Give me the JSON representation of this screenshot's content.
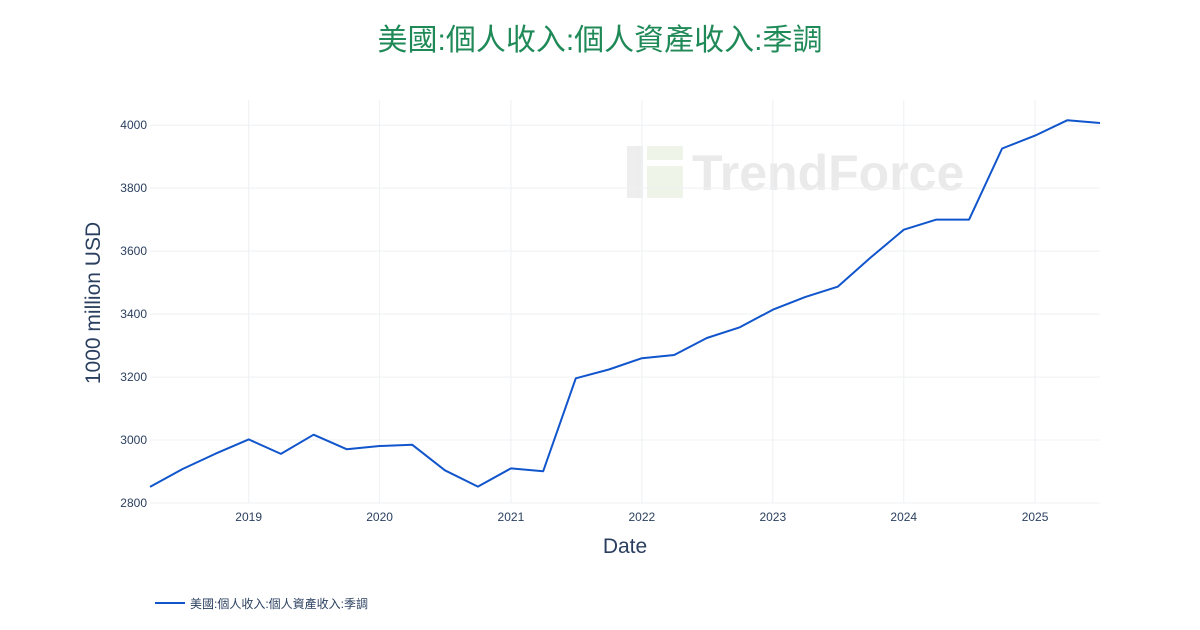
{
  "title": "美國:個人收入:個人資產收入:季調",
  "colors": {
    "title": "#1f8a57",
    "line": "#1155cc",
    "grid": "#eef0f3",
    "text": "#2a3f5f",
    "watermark": "#d9d9d9"
  },
  "watermark": "TrendForce",
  "chart_data": {
    "type": "line",
    "title": "美國:個人收入:個人資產收入:季調",
    "xlabel": "Date",
    "ylabel": "1000 million USD",
    "ylim": [
      2800,
      4080
    ],
    "xlim": [
      "2018-04-01",
      "2025-07-01"
    ],
    "y_ticks": [
      2800,
      3000,
      3200,
      3400,
      3600,
      3800,
      4000
    ],
    "x_ticks": [
      "2019",
      "2020",
      "2021",
      "2022",
      "2023",
      "2024",
      "2025"
    ],
    "legend_position": "bottom-left",
    "grid": true,
    "series": [
      {
        "name": "美國:個人收入:個人資產收入:季調",
        "x": [
          "2018-04-01",
          "2018-07-01",
          "2018-10-01",
          "2019-01-01",
          "2019-04-01",
          "2019-07-01",
          "2019-10-01",
          "2020-01-01",
          "2020-04-01",
          "2020-07-01",
          "2020-10-01",
          "2021-01-01",
          "2021-04-01",
          "2021-07-01",
          "2021-10-01",
          "2022-01-01",
          "2022-04-01",
          "2022-07-01",
          "2022-10-01",
          "2023-01-01",
          "2023-04-01",
          "2023-07-01",
          "2023-10-01",
          "2024-01-01",
          "2024-04-01",
          "2024-07-01",
          "2024-10-01",
          "2025-01-01",
          "2025-04-01",
          "2025-07-01"
        ],
        "values": [
          2851,
          2908,
          2957,
          3002,
          2956,
          3017,
          2971,
          2981,
          2985,
          2904,
          2852,
          2910,
          2901,
          3196,
          3224,
          3260,
          3270,
          3324,
          3358,
          3414,
          3454,
          3487,
          3580,
          3668,
          3700,
          3700,
          3926,
          3967,
          4016,
          4007
        ]
      }
    ]
  }
}
